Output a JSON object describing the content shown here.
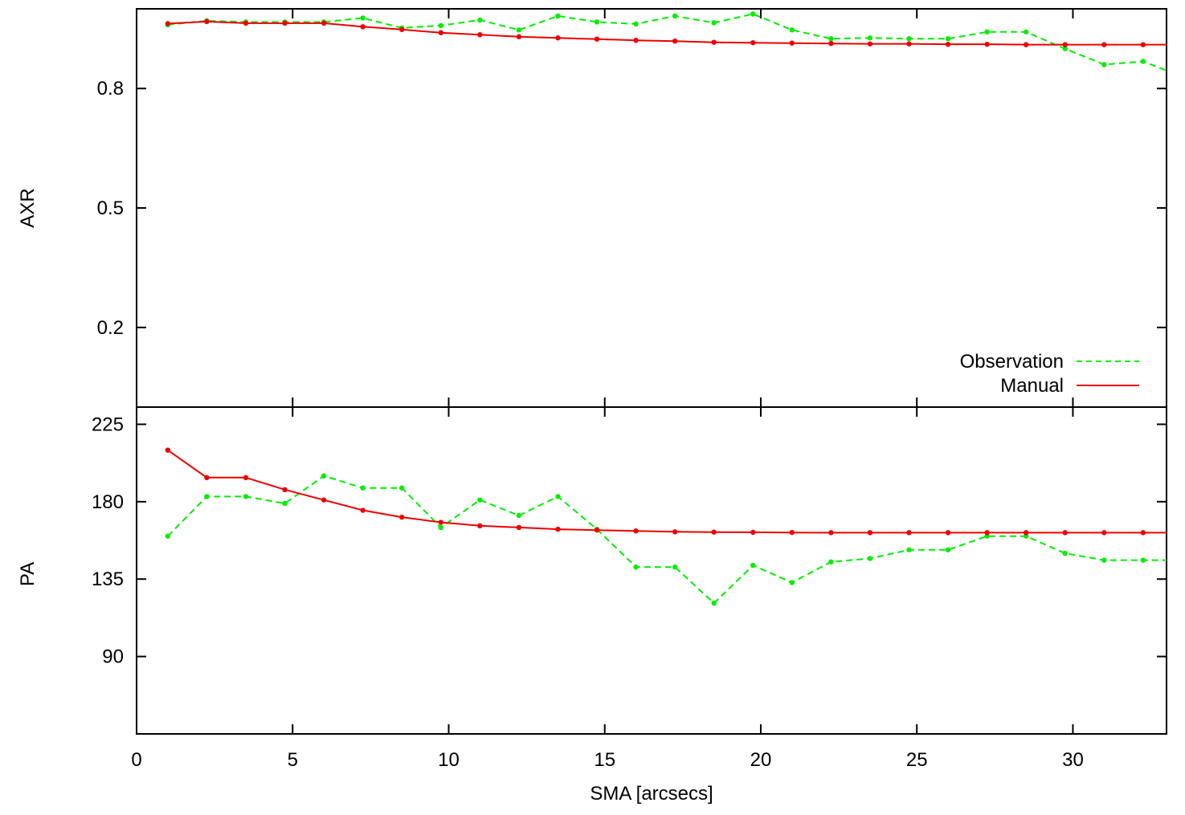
{
  "chart_data": [
    {
      "type": "line",
      "panel": "top",
      "ylabel": "AXR",
      "xlim": [
        0,
        33
      ],
      "ylim": [
        0.0,
        1.0
      ],
      "yticks": [
        0.2,
        0.5,
        0.8
      ],
      "ytick_labels": [
        "0.2",
        "0.5",
        "0.8"
      ],
      "xticks": [
        0,
        5,
        10,
        15,
        20,
        25,
        30
      ],
      "grid": false,
      "legend": "bottom-right",
      "series": [
        {
          "name": "Observation",
          "color": "#00ee00",
          "style": "dashed",
          "x": [
            1.0,
            2.25,
            3.5,
            4.75,
            6.0,
            7.25,
            8.5,
            9.75,
            11.0,
            12.25,
            13.5,
            14.75,
            16.0,
            17.25,
            18.5,
            19.75,
            21.0,
            22.25,
            23.5,
            24.75,
            26.0,
            27.25,
            28.5,
            29.75,
            31.0,
            32.25,
            33.0
          ],
          "y": [
            0.96,
            0.97,
            0.967,
            0.967,
            0.967,
            0.977,
            0.952,
            0.958,
            0.972,
            0.947,
            0.982,
            0.967,
            0.962,
            0.982,
            0.965,
            0.987,
            0.947,
            0.925,
            0.927,
            0.925,
            0.925,
            0.942,
            0.942,
            0.9,
            0.86,
            0.868,
            0.845
          ]
        },
        {
          "name": "Manual",
          "color": "#ee0000",
          "style": "solid",
          "x": [
            1.0,
            2.25,
            3.5,
            4.75,
            6.0,
            7.25,
            8.5,
            9.75,
            11.0,
            12.25,
            13.5,
            14.75,
            16.0,
            17.25,
            18.5,
            19.75,
            21.0,
            22.25,
            23.5,
            24.75,
            26.0,
            27.25,
            28.5,
            29.75,
            31.0,
            32.25,
            33.0
          ],
          "y": [
            0.963,
            0.968,
            0.964,
            0.964,
            0.964,
            0.955,
            0.948,
            0.94,
            0.935,
            0.93,
            0.927,
            0.924,
            0.921,
            0.919,
            0.916,
            0.915,
            0.914,
            0.913,
            0.912,
            0.912,
            0.911,
            0.911,
            0.91,
            0.91,
            0.91,
            0.91,
            0.91
          ]
        }
      ]
    },
    {
      "type": "line",
      "panel": "bottom",
      "xlabel": "SMA [arcsecs]",
      "ylabel": "PA",
      "xlim": [
        0,
        33
      ],
      "ylim": [
        45,
        235
      ],
      "yticks": [
        90,
        135,
        180,
        225
      ],
      "ytick_labels": [
        "90",
        "135",
        "180",
        "225"
      ],
      "xticks": [
        0,
        5,
        10,
        15,
        20,
        25,
        30
      ],
      "xtick_labels": [
        "0",
        "5",
        "10",
        "15",
        "20",
        "25",
        "30"
      ],
      "grid": false,
      "series": [
        {
          "name": "Observation",
          "color": "#00ee00",
          "style": "dashed",
          "x": [
            1.0,
            2.25,
            3.5,
            4.75,
            6.0,
            7.25,
            8.5,
            9.75,
            11.0,
            12.25,
            13.5,
            14.75,
            16.0,
            17.25,
            18.5,
            19.75,
            21.0,
            22.25,
            23.5,
            24.75,
            26.0,
            27.25,
            28.5,
            29.75,
            31.0,
            32.25,
            33.0
          ],
          "y": [
            160,
            183,
            183,
            179,
            195,
            188,
            188,
            165,
            181,
            172,
            183,
            164,
            142,
            142,
            121,
            143,
            133,
            145,
            147,
            152,
            152,
            160,
            160,
            150,
            146,
            146,
            146
          ]
        },
        {
          "name": "Manual",
          "color": "#ee0000",
          "style": "solid",
          "x": [
            1.0,
            2.25,
            3.5,
            4.75,
            6.0,
            7.25,
            8.5,
            9.75,
            11.0,
            12.25,
            13.5,
            14.75,
            16.0,
            17.25,
            18.5,
            19.75,
            21.0,
            22.25,
            23.5,
            24.75,
            26.0,
            27.25,
            28.5,
            29.75,
            31.0,
            32.25,
            33.0
          ],
          "y": [
            210,
            194,
            194,
            187,
            181,
            175,
            171,
            168,
            166,
            165,
            164,
            163.5,
            163,
            162.5,
            162.3,
            162.2,
            162.1,
            162,
            162,
            162,
            162,
            162,
            162,
            162,
            162,
            162,
            162
          ]
        }
      ]
    }
  ]
}
